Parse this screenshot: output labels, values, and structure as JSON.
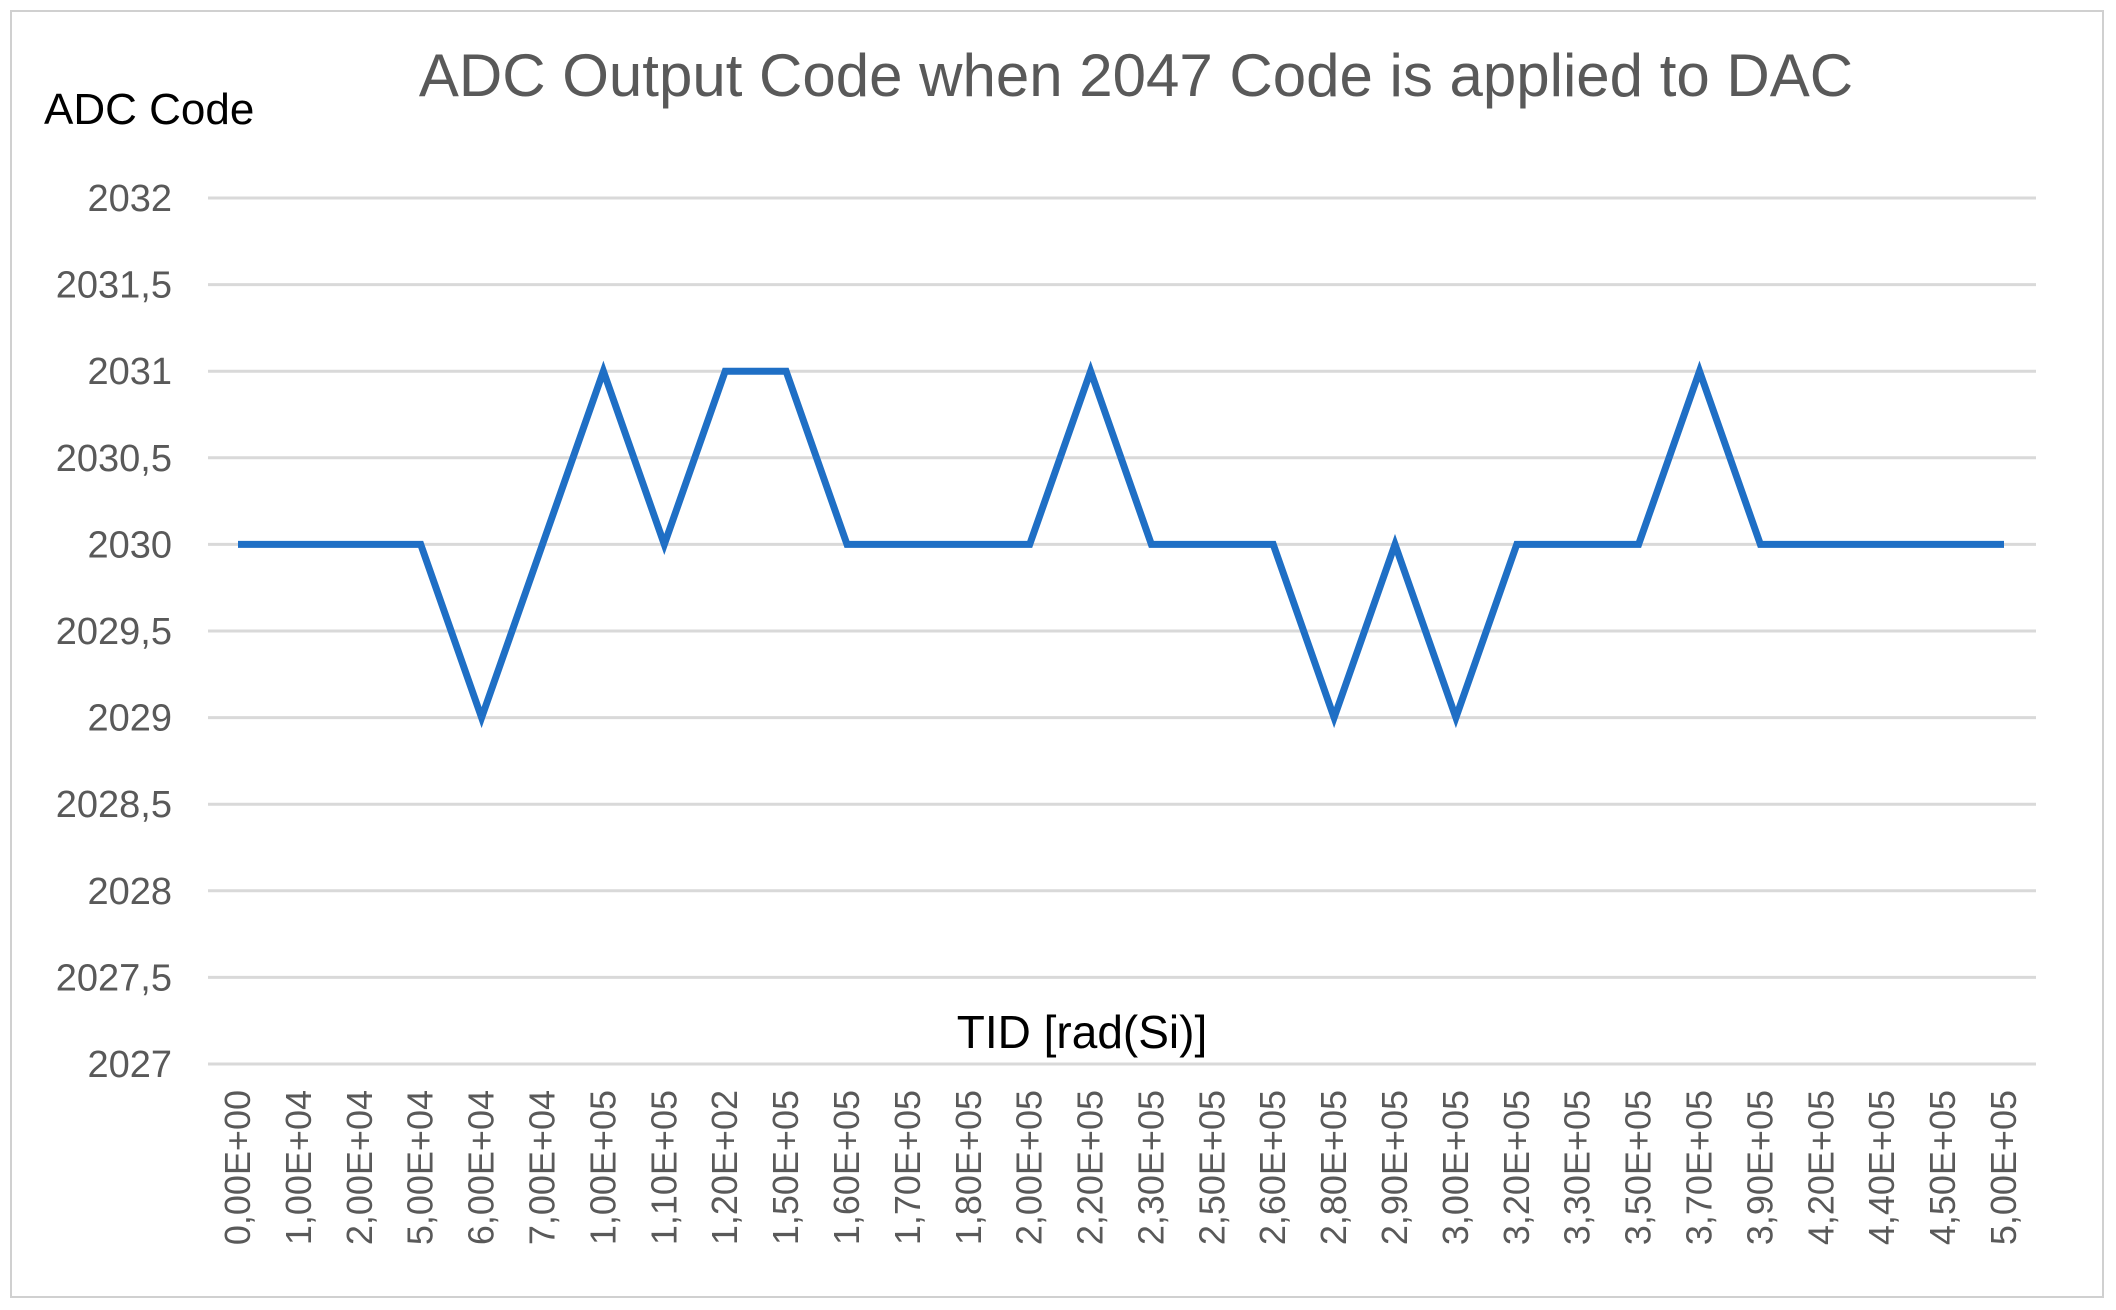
{
  "chart_data": {
    "type": "line",
    "title": "ADC Output Code when 2047 Code is applied to DAC",
    "ylabel": "ADC Code",
    "xlabel": "TID [rad(Si)]",
    "ylim": [
      2027,
      2032
    ],
    "yticks": [
      "2027",
      "2027,5",
      "2028",
      "2028,5",
      "2029",
      "2029,5",
      "2030",
      "2030,5",
      "2031",
      "2031,5",
      "2032"
    ],
    "categories": [
      "0,00E+00",
      "1,00E+04",
      "2,00E+04",
      "5,00E+04",
      "6,00E+04",
      "7,00E+04",
      "1,00E+05",
      "1,10E+05",
      "1,20E+02",
      "1,50E+05",
      "1,60E+05",
      "1,70E+05",
      "1,80E+05",
      "2,00E+05",
      "2,20E+05",
      "2,30E+05",
      "2,50E+05",
      "2,60E+05",
      "2,80E+05",
      "2,90E+05",
      "3,00E+05",
      "3,20E+05",
      "3,30E+05",
      "3,50E+05",
      "3,70E+05",
      "3,90E+05",
      "4,20E+05",
      "4,40E+05",
      "4,50E+05",
      "5,00E+05"
    ],
    "values": [
      2030,
      2030,
      2030,
      2030,
      2029,
      2030,
      2031,
      2030,
      2031,
      2031,
      2030,
      2030,
      2030,
      2030,
      2031,
      2030,
      2030,
      2030,
      2029,
      2030,
      2029,
      2030,
      2030,
      2030,
      2031,
      2030,
      2030,
      2030,
      2030,
      2030
    ],
    "grid": true,
    "legend": "none",
    "line_color": "#1F6FC5"
  }
}
